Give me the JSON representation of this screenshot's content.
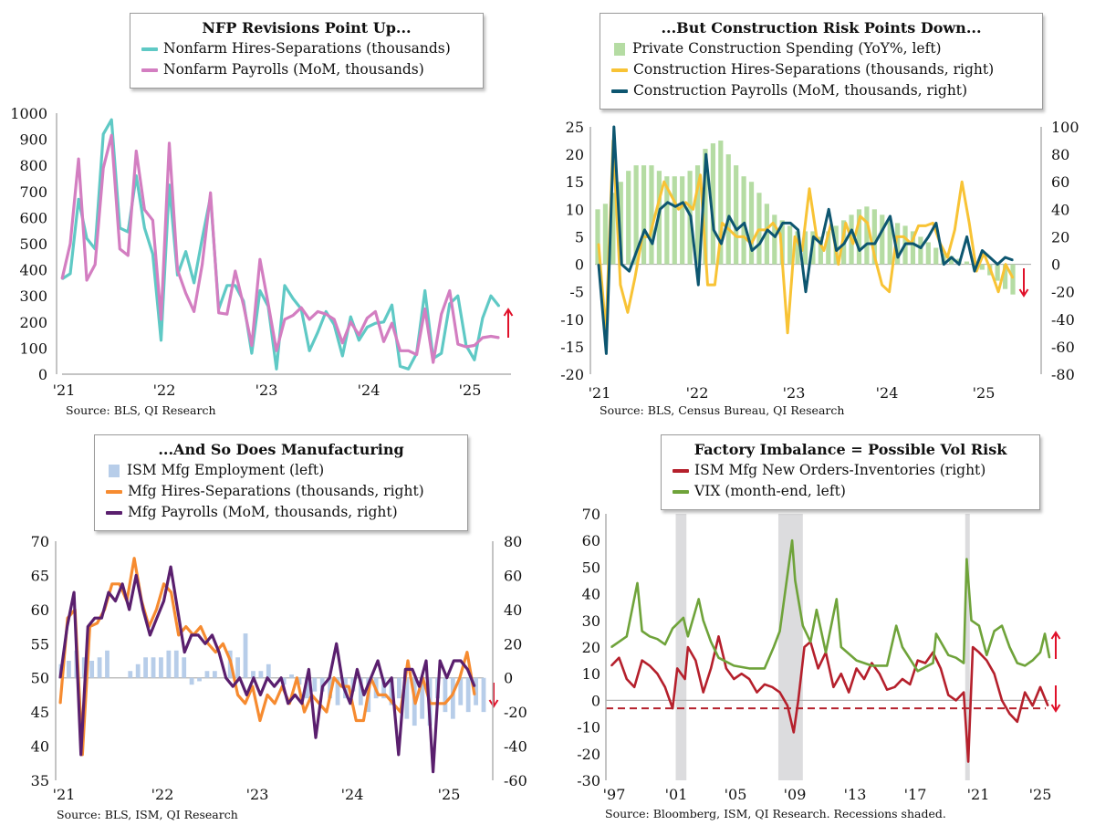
{
  "chart_data": [
    {
      "type": "line",
      "title": "NFP Revisions Point Up...",
      "source": "Source: BLS, QI Research",
      "x_ticks": [
        "'21",
        "'22",
        "'23",
        "'24",
        "'25"
      ],
      "ylim": [
        0,
        1000
      ],
      "y_ticks": [
        "0",
        "100",
        "200",
        "300",
        "400",
        "500",
        "600",
        "700",
        "800",
        "900",
        "1000"
      ],
      "arrow": "up",
      "colors": {
        "hires": "#5fc9c5",
        "payrolls": "#d37ec1",
        "arrow": "#e0112a"
      },
      "series": [
        {
          "name": "Nonfarm Hires-Separations (thousands)",
          "values": [
            365,
            385,
            670,
            520,
            480,
            920,
            975,
            560,
            545,
            760,
            560,
            460,
            130,
            725,
            380,
            470,
            350,
            520,
            680,
            250,
            340,
            340,
            280,
            80,
            320,
            260,
            20,
            340,
            290,
            250,
            90,
            160,
            240,
            190,
            70,
            220,
            130,
            180,
            195,
            200,
            265,
            30,
            20,
            80,
            320,
            60,
            80,
            270,
            300,
            110,
            55,
            215,
            300,
            260
          ]
        },
        {
          "name": "Nonfarm Payrolls (MoM, thousands)",
          "values": [
            365,
            500,
            825,
            360,
            420,
            790,
            915,
            480,
            455,
            855,
            630,
            590,
            210,
            885,
            400,
            310,
            240,
            420,
            695,
            235,
            230,
            395,
            265,
            110,
            440,
            270,
            90,
            210,
            225,
            255,
            210,
            240,
            230,
            210,
            120,
            200,
            150,
            215,
            240,
            125,
            195,
            90,
            90,
            75,
            250,
            45,
            230,
            320,
            115,
            105,
            110,
            140,
            145,
            140
          ]
        }
      ]
    },
    {
      "type": "bar+line",
      "title": "...But Construction Risk Points Down...",
      "source": "Source: BLS, Census Bureau, QI Research",
      "x_ticks": [
        "'21",
        "'22",
        "'23",
        "'24",
        "'25"
      ],
      "ylim_left": [
        -20,
        25
      ],
      "ylim_right": [
        -80,
        100
      ],
      "y_ticks_left": [
        "-20",
        "-15",
        "-10",
        "-5",
        "0",
        "5",
        "10",
        "15",
        "20",
        "25"
      ],
      "y_ticks_right": [
        "-80",
        "-60",
        "-40",
        "-20",
        "0",
        "20",
        "40",
        "60",
        "80",
        "100"
      ],
      "arrow": "down",
      "colors": {
        "bars": "#b5dca3",
        "hires": "#f8c335",
        "payrolls": "#0d5670",
        "arrow": "#e0112a"
      },
      "bars": {
        "name": "Private Construction Spending (YoY%, left)",
        "values": [
          10.0,
          11.0,
          13.0,
          15.0,
          17.0,
          18.0,
          18.0,
          18.0,
          17.0,
          16.0,
          16.0,
          16.0,
          17.0,
          18.0,
          21.0,
          22.0,
          22.5,
          20.0,
          18.0,
          16.0,
          15.0,
          13.0,
          11.0,
          9.0,
          8.0,
          7.0,
          6.0,
          6.0,
          6.0,
          5.0,
          6.0,
          7.0,
          8.0,
          9.0,
          10.0,
          10.5,
          10.0,
          9.0,
          8.0,
          7.5,
          7.0,
          6.0,
          5.0,
          4.0,
          3.0,
          2.0,
          1.5,
          1.0,
          0.5,
          0.0,
          -1.0,
          -2.0,
          -3.0,
          -4.5,
          -5.5
        ]
      },
      "series": [
        {
          "name": "Construction Hires-Separations (thousands, right)",
          "values": [
            15,
            -50,
            90,
            -15,
            -35,
            -10,
            20,
            20,
            40,
            60,
            50,
            40,
            45,
            40,
            65,
            -15,
            -15,
            30,
            25,
            20,
            20,
            15,
            25,
            25,
            30,
            22,
            -50,
            20,
            10,
            55,
            20,
            10,
            30,
            0,
            30,
            15,
            35,
            30,
            5,
            -15,
            -20,
            20,
            20,
            15,
            28,
            28,
            30,
            15,
            5,
            25,
            60,
            30,
            -5,
            8,
            -5,
            -20,
            0,
            -10
          ]
        },
        {
          "name": "Construction Payrolls (MoM, thousands, right)",
          "values": [
            0,
            -65,
            100,
            0,
            -5,
            10,
            25,
            15,
            40,
            45,
            42,
            45,
            35,
            -15,
            80,
            25,
            15,
            35,
            25,
            30,
            10,
            15,
            25,
            20,
            30,
            30,
            25,
            -20,
            20,
            15,
            40,
            10,
            15,
            25,
            10,
            15,
            15,
            25,
            35,
            5,
            15,
            15,
            12,
            20,
            30,
            0,
            5,
            0,
            20,
            -5,
            10,
            5,
            0,
            5,
            3
          ]
        }
      ]
    },
    {
      "type": "bar+line",
      "title": "...And So Does Manufacturing",
      "source": "Source: BLS, ISM, QI Research",
      "x_ticks": [
        "'21",
        "'22",
        "'23",
        "'24",
        "'25"
      ],
      "ylim_left": [
        35,
        70
      ],
      "ylim_right": [
        -60,
        80
      ],
      "y_ticks_left": [
        "35",
        "40",
        "45",
        "50",
        "55",
        "60",
        "65",
        "70"
      ],
      "y_ticks_right": [
        "-60",
        "-40",
        "-20",
        "0",
        "20",
        "40",
        "60",
        "80"
      ],
      "arrow": "down",
      "colors": {
        "bars": "#b7cde9",
        "hires": "#f68b30",
        "payrolls": "#5a1f6e",
        "arrow": "#e0112a"
      },
      "bars": {
        "name": "ISM Mfg Employment (left)",
        "values": [
          52,
          52.5,
          54,
          53,
          52.5,
          53,
          54,
          50,
          50,
          51,
          52,
          53,
          53,
          53,
          54,
          54,
          53,
          49,
          49.5,
          51,
          51,
          50,
          54,
          53,
          56.5,
          51,
          51,
          52,
          50,
          49,
          50.5,
          49,
          47,
          48,
          48,
          47,
          46,
          47,
          48,
          46,
          45,
          47,
          47,
          46,
          47,
          44,
          43,
          44,
          43,
          47,
          45,
          44,
          46,
          45,
          46,
          45
        ]
      },
      "series": [
        {
          "name": "Mfg Hires-Separations (thousands, right)",
          "values": [
            -15,
            35,
            40,
            -45,
            30,
            32,
            40,
            55,
            55,
            45,
            70,
            45,
            30,
            40,
            55,
            50,
            25,
            30,
            25,
            30,
            20,
            15,
            20,
            10,
            -10,
            -15,
            -5,
            -25,
            -10,
            -15,
            -5,
            -15,
            0,
            -20,
            -10,
            -15,
            -20,
            0,
            -5,
            -5,
            -25,
            -25,
            0,
            -10,
            -10,
            -15,
            -20,
            10,
            -15,
            0,
            -15,
            -15,
            -15,
            -10,
            0,
            15,
            -10
          ]
        },
        {
          "name": "Mfg Payrolls (MoM, thousands, right)",
          "values": [
            0,
            30,
            50,
            -45,
            30,
            35,
            35,
            50,
            45,
            55,
            40,
            60,
            40,
            25,
            35,
            45,
            65,
            40,
            15,
            25,
            25,
            20,
            25,
            15,
            0,
            -5,
            0,
            -10,
            0,
            -10,
            0,
            -5,
            0,
            -15,
            -10,
            -15,
            5,
            -35,
            -5,
            0,
            20,
            -5,
            -15,
            5,
            -10,
            0,
            10,
            -5,
            0,
            -45,
            5,
            5,
            -5,
            10,
            -55,
            10,
            0,
            10,
            10,
            5,
            -5
          ]
        }
      ]
    },
    {
      "type": "line",
      "title": "Factory Imbalance = Possible Vol Risk",
      "source": "Source: Bloomberg, ISM, QI Research. Recessions shaded.",
      "x_ticks": [
        "'97",
        "'01",
        "'05",
        "'09",
        "'13",
        "'17",
        "'21",
        "'25"
      ],
      "ylim": [
        -30,
        70
      ],
      "y_ticks": [
        "-30",
        "-20",
        "-10",
        "0",
        "10",
        "20",
        "30",
        "40",
        "50",
        "60",
        "70"
      ],
      "recessions": [
        [
          2001.2,
          2001.9
        ],
        [
          2007.9,
          2009.5
        ],
        [
          2020.1,
          2020.4
        ]
      ],
      "dashed_line_value": -3,
      "arrows": [
        "up",
        "down"
      ],
      "colors": {
        "ism": "#b5202c",
        "vix": "#6fa33a",
        "recession": "#dcdcde",
        "arrow": "#e0112a"
      },
      "series": [
        {
          "name": "ISM Mfg New Orders-Inventories (right)",
          "x": [
            1997.0,
            1997.5,
            1998.0,
            1998.5,
            1999.0,
            1999.5,
            2000.0,
            2000.5,
            2001.0,
            2001.3,
            2001.8,
            2002.0,
            2002.5,
            2003.0,
            2003.5,
            2004.0,
            2004.5,
            2005.0,
            2005.5,
            2006.0,
            2006.5,
            2007.0,
            2007.5,
            2008.0,
            2008.5,
            2008.9,
            2009.2,
            2009.6,
            2010.0,
            2010.5,
            2011.0,
            2011.5,
            2012.0,
            2012.5,
            2013.0,
            2013.5,
            2014.0,
            2014.5,
            2015.0,
            2015.5,
            2016.0,
            2016.5,
            2017.0,
            2017.5,
            2018.0,
            2018.5,
            2019.0,
            2019.5,
            2020.0,
            2020.3,
            2020.6,
            2021.0,
            2021.5,
            2022.0,
            2022.5,
            2023.0,
            2023.5,
            2024.0,
            2024.5,
            2025.0,
            2025.5
          ],
          "values": [
            13,
            16,
            8,
            5,
            15,
            13,
            10,
            5,
            -3,
            12,
            8,
            20,
            15,
            3,
            12,
            24,
            12,
            8,
            10,
            8,
            3,
            6,
            5,
            3,
            -2,
            -12,
            0,
            20,
            22,
            12,
            18,
            5,
            10,
            3,
            12,
            8,
            14,
            10,
            4,
            5,
            8,
            6,
            15,
            14,
            18,
            12,
            2,
            0,
            3,
            -23,
            20,
            18,
            15,
            10,
            0,
            -5,
            -8,
            3,
            -2,
            5,
            -2
          ]
        },
        {
          "name": "VIX (month-end, left)",
          "x": [
            1997.0,
            1997.5,
            1998.0,
            1998.7,
            1999.0,
            1999.5,
            2000.0,
            2000.5,
            2001.0,
            2001.7,
            2002.0,
            2002.7,
            2003.0,
            2003.5,
            2004.0,
            2005.0,
            2006.0,
            2007.0,
            2007.6,
            2008.0,
            2008.8,
            2009.0,
            2009.5,
            2010.0,
            2010.4,
            2011.0,
            2011.7,
            2012.0,
            2013.0,
            2014.0,
            2015.0,
            2015.6,
            2016.0,
            2017.0,
            2018.0,
            2018.2,
            2019.0,
            2019.5,
            2020.0,
            2020.2,
            2020.5,
            2021.0,
            2021.5,
            2022.0,
            2022.5,
            2023.0,
            2023.5,
            2024.0,
            2024.5,
            2025.0,
            2025.3,
            2025.6
          ],
          "values": [
            20,
            22,
            24,
            44,
            26,
            24,
            23,
            21,
            27,
            31,
            24,
            38,
            30,
            22,
            16,
            13,
            12,
            12,
            20,
            26,
            60,
            45,
            28,
            22,
            34,
            18,
            38,
            20,
            15,
            13,
            13,
            28,
            20,
            11,
            14,
            25,
            17,
            16,
            14,
            53,
            30,
            28,
            17,
            26,
            28,
            20,
            14,
            13,
            15,
            18,
            25,
            16
          ]
        }
      ]
    }
  ]
}
